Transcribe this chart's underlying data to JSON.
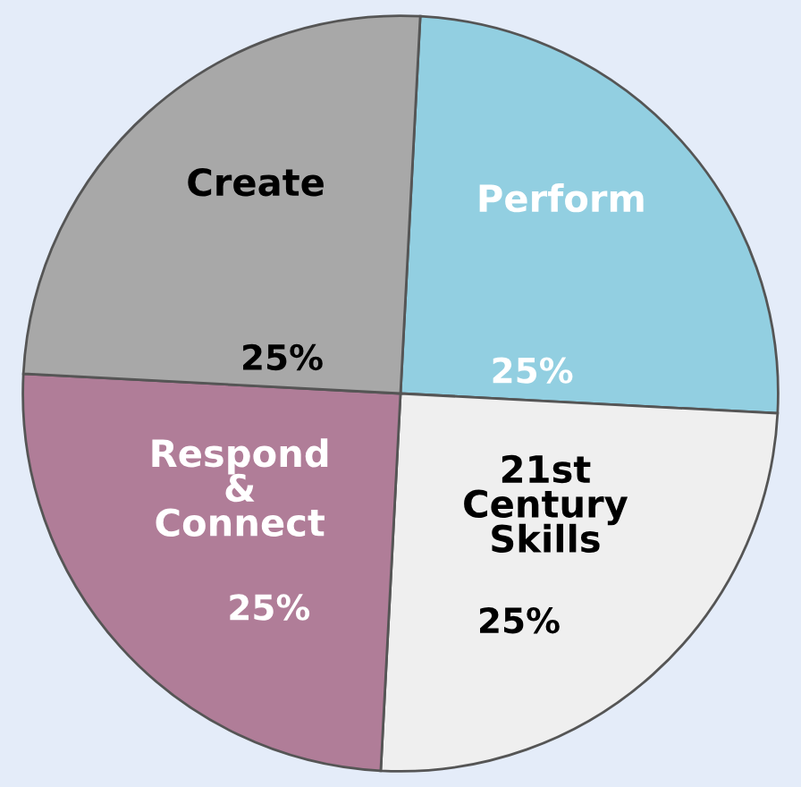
{
  "chart_data": {
    "type": "pie",
    "categories": [
      "Perform",
      "21st Century Skills",
      "Respond & Connect",
      "Create"
    ],
    "values": [
      25,
      25,
      25,
      25
    ],
    "colors": [
      "#92cfe1",
      "#efefef",
      "#b07d98",
      "#a8a8a8"
    ],
    "value_labels": [
      "25%",
      "25%",
      "25%",
      "25%"
    ]
  }
}
